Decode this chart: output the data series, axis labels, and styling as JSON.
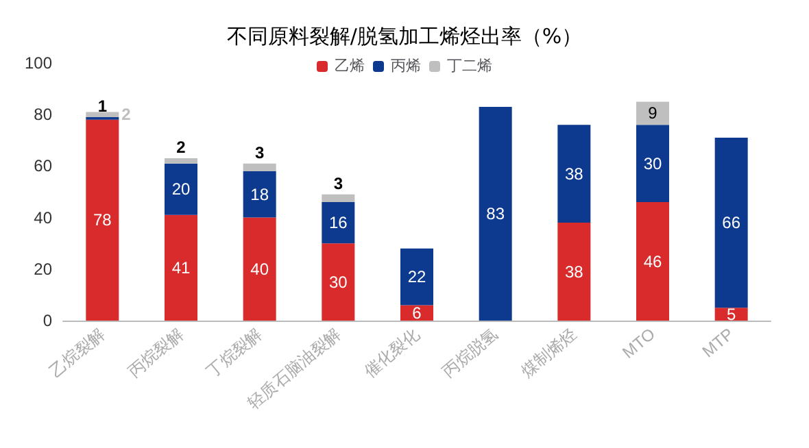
{
  "chart_data": {
    "type": "bar",
    "title": "不同原料裂解/脱氢加工烯烃出率（%）",
    "stacked": true,
    "data_labels": true,
    "legend": "top",
    "grid": false,
    "categories": [
      "乙烷裂解",
      "丙烷裂解",
      "丁烷裂解",
      "轻质石脑油裂解",
      "催化裂化",
      "丙烷脱氢",
      "煤制烯烃",
      "MTO",
      "MTP"
    ],
    "ylim": [
      0,
      100
    ],
    "yticks": [
      0,
      20,
      40,
      60,
      80,
      100
    ],
    "series": [
      {
        "name": "乙烯",
        "color": "#d92b2b",
        "values": [
          78,
          41,
          40,
          30,
          6,
          null,
          38,
          46,
          5
        ]
      },
      {
        "name": "丙烯",
        "color": "#0d3a8e",
        "values": [
          1,
          20,
          18,
          16,
          22,
          83,
          38,
          30,
          66
        ]
      },
      {
        "name": "丁二烯",
        "color": "#bfbfbf",
        "values": [
          2,
          2,
          3,
          3,
          null,
          null,
          null,
          9,
          null
        ]
      }
    ]
  }
}
